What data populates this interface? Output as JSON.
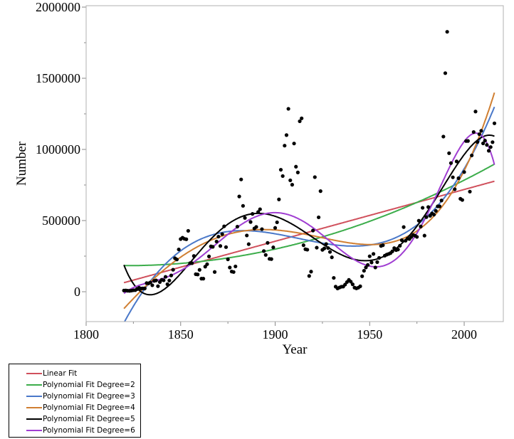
{
  "chart_data": {
    "type": "scatter",
    "xlabel": "Year",
    "ylabel": "Number",
    "xlim": [
      1800,
      2020.7
    ],
    "ylim": [
      -210000,
      2010000
    ],
    "xticks": [
      "1800",
      "1850",
      "1900",
      "1950",
      "2000"
    ],
    "yticks": [
      "0",
      "500000",
      "1000000",
      "1500000",
      "2000000"
    ],
    "legend_placement": "bottom-left",
    "fits": [
      {
        "name": "Linear Fit",
        "degree": 1,
        "color": "#d0505c"
      },
      {
        "name": "Polynomial Fit Degree=2",
        "degree": 2,
        "color": "#3cad4b"
      },
      {
        "name": "Polynomial Fit Degree=3",
        "degree": 3,
        "color": "#4a78c9"
      },
      {
        "name": "Polynomial Fit Degree=4",
        "degree": 4,
        "color": "#d07f32"
      },
      {
        "name": "Polynomial Fit Degree=5",
        "degree": 5,
        "color": "#000000"
      },
      {
        "name": "Polynomial Fit Degree=6",
        "degree": 6,
        "color": "#a03ed2"
      }
    ],
    "x_start": 1820,
    "y": [
      8385,
      9127,
      6911,
      6354,
      7912,
      10199,
      10837,
      18875,
      27382,
      22520,
      23322,
      22633,
      60482,
      58640,
      65365,
      45374,
      76242,
      79340,
      38914,
      68069,
      84066,
      80289,
      104565,
      52496,
      78615,
      114371,
      154416,
      234968,
      226527,
      297024,
      369980,
      379466,
      371603,
      368645,
      427833,
      200877,
      200436,
      251306,
      123126,
      121282,
      153640,
      91918,
      91985,
      176282,
      193418,
      248120,
      318568,
      315722,
      138840,
      352768,
      387203,
      321350,
      404806,
      459803,
      313339,
      227498,
      169986,
      141857,
      138469,
      177826,
      457257,
      669431,
      788992,
      603322,
      518592,
      395346,
      334203,
      490109,
      546889,
      444427,
      455302,
      560319,
      579663,
      439730,
      285631,
      258536,
      343267,
      230832,
      229299,
      311715,
      448572,
      487918,
      648743,
      857046,
      812870,
      1026499,
      1100735,
      1285349,
      782870,
      751786,
      1041570,
      878587,
      838172,
      1197892,
      1218480,
      326700,
      298826,
      295403,
      110618,
      141132,
      430001,
      805228,
      309556,
      522919,
      706896,
      294314,
      304488,
      335175,
      307255,
      279678,
      241700,
      97139,
      35576,
      23068,
      29470,
      34956,
      36329,
      50244,
      67895,
      82998,
      70756,
      51776,
      28781,
      23725,
      28551,
      38119,
      108721,
      147292,
      170570,
      188317,
      249187,
      205717,
      265520,
      170434,
      208177,
      237790,
      321625,
      326867,
      253265,
      260686,
      265398,
      271344,
      283763,
      306260,
      292248,
      296697,
      323040,
      361972,
      454448,
      358579,
      373326,
      370478,
      384685,
      398515,
      393919,
      385378,
      499093,
      458755,
      589810,
      394244,
      524295,
      595014,
      533624,
      550052,
      541811,
      568149,
      600027,
      599889,
      641346,
      1090172,
      1535872,
      1826595,
      973445,
      903916,
      803993,
      720177,
      915560,
      797847,
      653206,
      644787,
      841002,
      1058902,
      1059356,
      703542,
      957883,
      1122257,
      1266129,
      1052415,
      1107126,
      1130818,
      1042625,
      1062040,
      1031631,
      990553,
      1016518,
      1051031,
      1183505
    ]
  }
}
